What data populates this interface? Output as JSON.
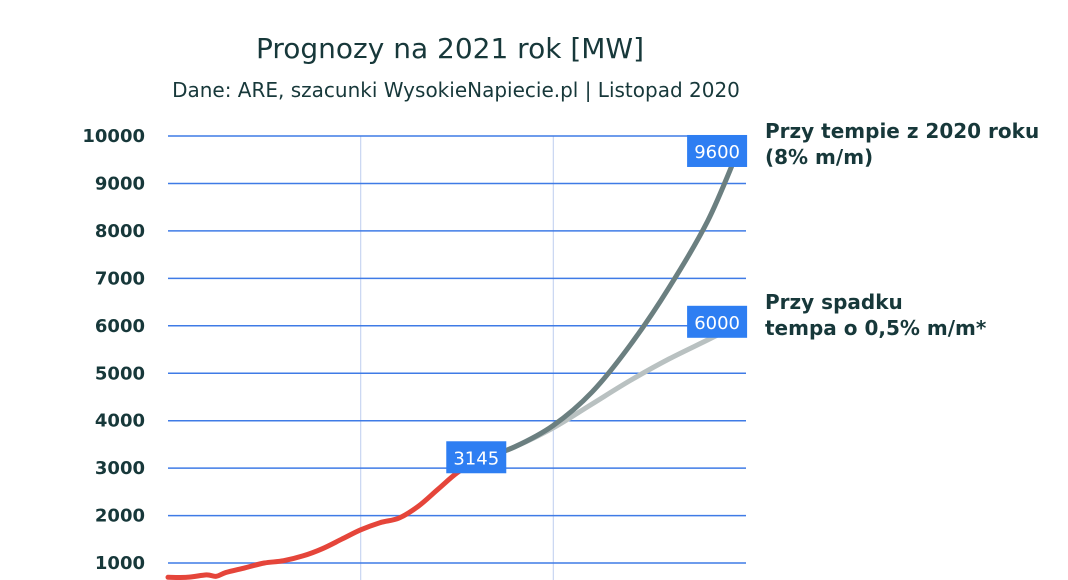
{
  "chart_data": {
    "type": "line",
    "title": "Prognozy na 2021 rok [MW]",
    "subtitle": "Dane: ARE, szacunki WysokieNapiecie.pl | Listopad 2020",
    "ylim": [
      0,
      10000
    ],
    "yticks": [
      1000,
      2000,
      3000,
      4000,
      5000,
      6000,
      7000,
      8000,
      9000,
      10000
    ],
    "y_grid": true,
    "xlim": [
      0,
      30
    ],
    "x_grid_at": [
      10,
      20
    ],
    "series": [
      {
        "color": "#e5453a",
        "x": [
          0,
          1,
          2,
          2.5,
          3,
          4,
          5,
          6,
          7,
          8,
          9,
          10,
          11,
          12,
          13,
          14,
          15,
          16
        ],
        "y": [
          700,
          700,
          750,
          720,
          800,
          900,
          1000,
          1050,
          1150,
          1300,
          1500,
          1700,
          1850,
          1950,
          2200,
          2550,
          2900,
          3145
        ]
      },
      {
        "color": "#6b7f80",
        "x": [
          16,
          18,
          20,
          22,
          24,
          26,
          28,
          29.5
        ],
        "y": [
          3145,
          3450,
          3900,
          4600,
          5600,
          6800,
          8200,
          9600
        ]
      },
      {
        "color": "#b9c1c1",
        "x": [
          16,
          18,
          20,
          22,
          24,
          26,
          28,
          29.5
        ],
        "y": [
          3145,
          3450,
          3850,
          4350,
          4850,
          5300,
          5700,
          6000
        ]
      }
    ],
    "data_labels": [
      {
        "text": "3145",
        "x": 16,
        "y": 3145
      },
      {
        "text": "9600",
        "x": 28.5,
        "y": 9600
      },
      {
        "text": "6000",
        "x": 28.5,
        "y": 6000
      }
    ],
    "annotations": [
      {
        "lines": [
          "Przy tempie z 2020 roku",
          "(8% m/m)"
        ],
        "y": 9600
      },
      {
        "lines": [
          "Przy spadku",
          "tempa o 0,5% m/m*"
        ],
        "y": 6000
      }
    ],
    "colors": {
      "badge": "#2e7ef2",
      "grid": "#3f7be6",
      "vgrid": "#c9d6f2",
      "text": "#17383a"
    }
  }
}
